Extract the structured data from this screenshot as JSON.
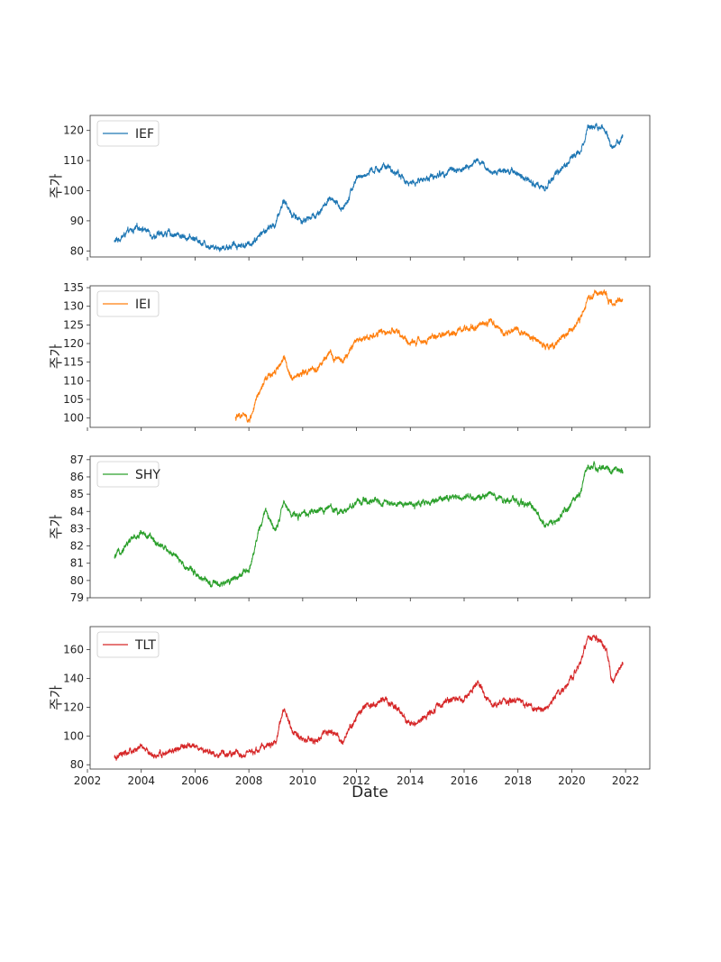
{
  "chart_data": [
    {
      "type": "line",
      "series": [
        {
          "name": "IEF"
        }
      ],
      "ylabel": "주가",
      "yticks": [
        80,
        90,
        100,
        110,
        120
      ],
      "ylim": [
        78,
        125
      ],
      "xlim": [
        2002.1,
        2022.9
      ],
      "color": "#1f77b4",
      "legend": "top-left",
      "start": 2003.0,
      "x": [
        2003.0,
        2003.5,
        2004.0,
        2004.5,
        2005.0,
        2005.5,
        2006.0,
        2006.5,
        2007.0,
        2007.5,
        2008.0,
        2008.5,
        2009.0,
        2009.3,
        2009.6,
        2010.0,
        2010.5,
        2011.0,
        2011.5,
        2012.0,
        2012.5,
        2013.0,
        2013.5,
        2014.0,
        2014.5,
        2015.0,
        2015.5,
        2016.0,
        2016.5,
        2017.0,
        2017.5,
        2018.0,
        2018.5,
        2019.0,
        2019.5,
        2020.0,
        2020.3,
        2020.6,
        2021.0,
        2021.3,
        2021.5,
        2021.9
      ],
      "y": [
        83,
        86,
        88,
        85,
        86,
        85,
        84,
        82,
        81,
        82,
        82,
        86,
        89,
        97,
        92,
        90,
        92,
        97,
        94,
        104,
        106,
        108,
        106,
        102,
        104,
        105,
        107,
        107,
        110,
        106,
        107,
        106,
        103,
        101,
        106,
        111,
        113,
        121,
        122,
        120,
        114,
        118
      ]
    },
    {
      "type": "line",
      "series": [
        {
          "name": "IEI"
        }
      ],
      "ylabel": "주가",
      "yticks": [
        100,
        105,
        110,
        115,
        120,
        125,
        130,
        135
      ],
      "ylim": [
        97.5,
        135.5
      ],
      "xlim": [
        2002.1,
        2022.9
      ],
      "color": "#ff7f0e",
      "legend": "top-left",
      "start": 2007.5,
      "x": [
        2007.5,
        2007.8,
        2008.0,
        2008.3,
        2008.6,
        2009.0,
        2009.3,
        2009.6,
        2010.0,
        2010.5,
        2011.0,
        2011.5,
        2012.0,
        2012.5,
        2013.0,
        2013.5,
        2014.0,
        2014.5,
        2015.0,
        2015.5,
        2016.0,
        2016.5,
        2017.0,
        2017.5,
        2018.0,
        2018.5,
        2019.0,
        2019.5,
        2020.0,
        2020.3,
        2020.6,
        2021.0,
        2021.3,
        2021.5,
        2021.9
      ],
      "y": [
        100,
        101,
        99,
        105,
        110,
        113,
        116,
        111,
        112,
        113,
        117,
        115,
        121,
        122,
        123,
        123,
        120,
        121,
        122,
        123,
        124,
        125,
        126,
        123,
        124,
        122,
        119,
        120,
        124,
        126,
        132,
        134,
        133,
        130.5,
        131.5
      ]
    },
    {
      "type": "line",
      "series": [
        {
          "name": "SHY"
        }
      ],
      "ylabel": "주가",
      "yticks": [
        79,
        80,
        81,
        82,
        83,
        84,
        85,
        86,
        87
      ],
      "ylim": [
        79.0,
        87.2
      ],
      "xlim": [
        2002.1,
        2022.9
      ],
      "color": "#2ca02c",
      "legend": "top-left",
      "start": 2003.0,
      "x": [
        2003.0,
        2003.5,
        2004.0,
        2004.5,
        2005.0,
        2005.5,
        2006.0,
        2006.5,
        2007.0,
        2007.5,
        2008.0,
        2008.3,
        2008.6,
        2009.0,
        2009.3,
        2009.6,
        2010.0,
        2010.5,
        2011.0,
        2011.5,
        2012.0,
        2012.5,
        2013.0,
        2013.5,
        2014.0,
        2014.5,
        2015.0,
        2015.5,
        2016.0,
        2016.5,
        2017.0,
        2017.5,
        2018.0,
        2018.5,
        2019.0,
        2019.5,
        2020.0,
        2020.3,
        2020.6,
        2021.0,
        2021.3,
        2021.9
      ],
      "y": [
        81.3,
        82.2,
        82.8,
        82.3,
        81.8,
        81.0,
        80.5,
        79.8,
        79.7,
        80.2,
        80.5,
        82.5,
        84.0,
        83.0,
        84.5,
        83.8,
        83.8,
        84.0,
        84.2,
        84.0,
        84.5,
        84.6,
        84.5,
        84.5,
        84.4,
        84.5,
        84.6,
        84.8,
        84.9,
        84.8,
        85.0,
        84.6,
        84.6,
        84.4,
        83.2,
        83.5,
        84.5,
        85.0,
        86.6,
        86.5,
        86.4,
        86.3
      ]
    },
    {
      "type": "line",
      "series": [
        {
          "name": "TLT"
        }
      ],
      "ylabel": "주가",
      "yticks": [
        80,
        100,
        120,
        140,
        160
      ],
      "xticks": [
        "2002",
        "2004",
        "2006",
        "2008",
        "2010",
        "2012",
        "2014",
        "2016",
        "2018",
        "2020",
        "2022"
      ],
      "xlabel": "Date",
      "ylim": [
        77,
        176
      ],
      "xlim": [
        2002.1,
        2022.9
      ],
      "color": "#d62728",
      "legend": "top-left",
      "start": 2003.0,
      "x": [
        2003.0,
        2003.5,
        2004.0,
        2004.5,
        2005.0,
        2005.5,
        2006.0,
        2006.5,
        2007.0,
        2007.5,
        2008.0,
        2008.5,
        2009.0,
        2009.3,
        2009.6,
        2010.0,
        2010.5,
        2011.0,
        2011.5,
        2012.0,
        2012.5,
        2013.0,
        2013.5,
        2014.0,
        2014.5,
        2015.0,
        2015.5,
        2016.0,
        2016.5,
        2017.0,
        2017.5,
        2018.0,
        2018.5,
        2019.0,
        2019.5,
        2020.0,
        2020.3,
        2020.6,
        2021.0,
        2021.3,
        2021.5,
        2021.9
      ],
      "y": [
        84,
        88,
        92,
        86,
        88,
        92,
        93,
        88,
        87,
        88,
        87,
        92,
        96,
        120,
        104,
        98,
        96,
        104,
        95,
        114,
        122,
        125,
        120,
        107,
        112,
        120,
        125,
        125,
        138,
        121,
        124,
        125,
        120,
        118,
        129,
        140,
        150,
        168,
        168,
        158,
        138,
        150
      ]
    }
  ]
}
